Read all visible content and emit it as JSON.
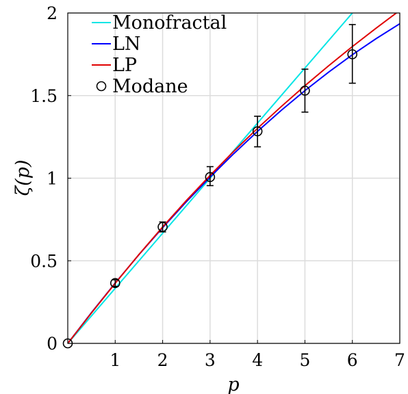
{
  "chart_data": {
    "type": "line",
    "title": "",
    "xlabel": "p",
    "ylabel": "ζ(p)",
    "xlim": [
      0,
      7
    ],
    "ylim": [
      0,
      2
    ],
    "xticks": [
      1,
      2,
      3,
      4,
      5,
      6,
      7
    ],
    "xtick_labels": [
      "1",
      "2",
      "3",
      "4",
      "5",
      "6",
      "7"
    ],
    "yticks": [
      0,
      0.5,
      1,
      1.5,
      2
    ],
    "ytick_labels": [
      "0",
      "0.5",
      "1",
      "1.5",
      "2"
    ],
    "grid": true,
    "legend_position": "top-left",
    "series": [
      {
        "name": "Monofractal",
        "kind": "line",
        "color": "#00e5e5",
        "x": [
          0,
          6.0
        ],
        "y": [
          0,
          2.0
        ]
      },
      {
        "name": "LN",
        "kind": "line",
        "color": "#0000ff",
        "x": [
          0,
          0.5,
          1,
          1.5,
          2,
          2.5,
          3,
          3.5,
          4,
          4.5,
          5,
          5.5,
          6,
          6.5,
          7
        ],
        "y": [
          0,
          0.1863,
          0.3652,
          0.5367,
          0.7008,
          0.8575,
          1.0068,
          1.1487,
          1.2832,
          1.4103,
          1.53,
          1.6423,
          1.7472,
          1.8447,
          1.9348
        ]
      },
      {
        "name": "LP",
        "kind": "line",
        "color": "#e00000",
        "x": [
          0,
          0.5,
          1,
          1.5,
          2,
          2.5,
          3,
          3.5,
          4,
          4.5,
          5,
          5.5,
          6,
          6.5,
          7
        ],
        "y": [
          0,
          0.1844,
          0.3641,
          0.5378,
          0.7047,
          0.8645,
          1.0171,
          1.1627,
          1.3014,
          1.4336,
          1.5599,
          1.6807,
          1.7966,
          1.9081,
          2.0157
        ]
      },
      {
        "name": "Modane",
        "kind": "scatter",
        "marker": "circle",
        "color": "#000000",
        "x": [
          0,
          1,
          2,
          3,
          4,
          5,
          6
        ],
        "y": [
          0,
          0.365,
          0.705,
          1.007,
          1.284,
          1.53,
          1.75
        ],
        "yerr_low": [
          0,
          0.345,
          0.675,
          0.955,
          1.19,
          1.4,
          1.575
        ],
        "yerr_high": [
          0,
          0.385,
          0.735,
          1.07,
          1.375,
          1.66,
          1.93
        ]
      }
    ]
  }
}
